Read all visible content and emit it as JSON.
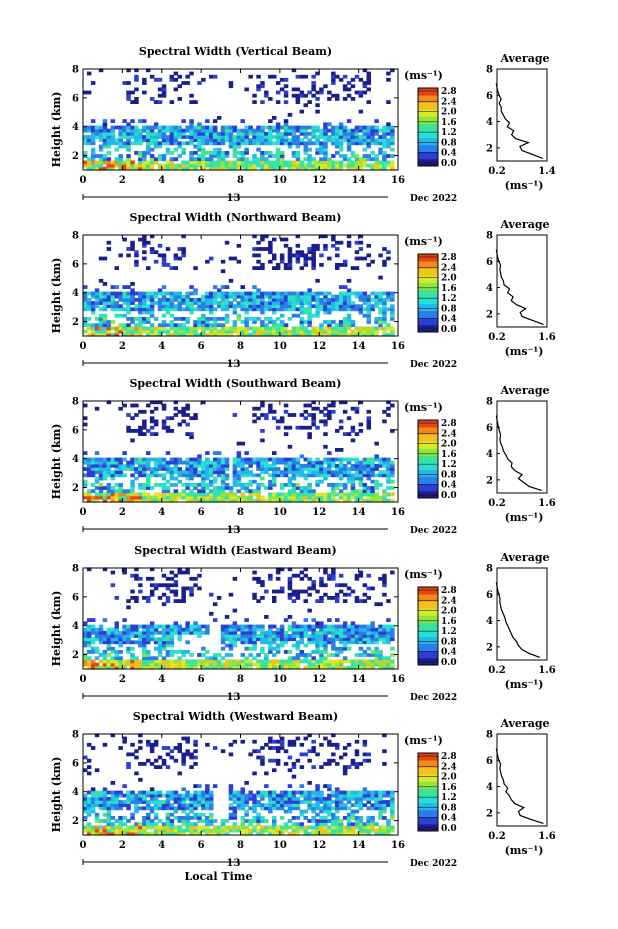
{
  "figure": {
    "xlabel_bottom": "Local Time",
    "date_suffix": "Dec 2022",
    "day_label": "13",
    "ylabel": "Height (km)",
    "colorbar_unit": "(ms⁻¹)",
    "profile_title": "Average",
    "profile_xlabel": "(ms⁻¹)",
    "colorbar_palette": [
      "#1b1f8a",
      "#2b3fd6",
      "#2a7ee8",
      "#27b6e8",
      "#27e0d0",
      "#3de39a",
      "#8ee640",
      "#d8e82a",
      "#f2c21c",
      "#f08a1a",
      "#e04616"
    ]
  },
  "chart_data": [
    {
      "type": "heatmap",
      "title": "Spectral Width (Vertical Beam)",
      "xlabel": "Local Time",
      "ylabel": "Height (km)",
      "xlim": [
        0,
        16
      ],
      "ylim": [
        1,
        8
      ],
      "xticks": [
        0,
        2,
        4,
        6,
        8,
        10,
        12,
        14,
        16
      ],
      "yticks": [
        2,
        4,
        6,
        8
      ],
      "colorbar": {
        "label": "(ms⁻¹)",
        "range": [
          0,
          2.8
        ],
        "ticks": [
          "2.8",
          "2.4",
          "2.0",
          "1.6",
          "1.2",
          "0.8",
          "0.4",
          "0.0"
        ]
      },
      "profile": {
        "title": "Average",
        "xlabel": "(ms⁻¹)",
        "xlim": [
          0.2,
          1.4
        ],
        "xticks": [
          "0.2",
          "1.4"
        ],
        "ylim": [
          1,
          8
        ],
        "yticks": [
          2,
          4,
          6,
          8
        ],
        "height": [
          1.2,
          1.5,
          1.8,
          2.1,
          2.4,
          2.7,
          3.0,
          3.3,
          3.6,
          3.9,
          4.2,
          4.5,
          4.8,
          5.1,
          5.4,
          5.7,
          6.0,
          6.3,
          6.6,
          6.9
        ],
        "value": [
          1.3,
          1.05,
          0.8,
          0.75,
          0.95,
          0.65,
          0.55,
          0.6,
          0.45,
          0.5,
          0.4,
          0.35,
          0.3,
          0.3,
          0.25,
          0.3,
          0.25,
          0.22,
          0.2,
          0.18
        ]
      }
    },
    {
      "type": "heatmap",
      "title": "Spectral Width (Northward Beam)",
      "xlabel": "Local Time",
      "ylabel": "Height (km)",
      "xlim": [
        0,
        16
      ],
      "ylim": [
        1,
        8
      ],
      "xticks": [
        0,
        2,
        4,
        6,
        8,
        10,
        12,
        14,
        16
      ],
      "yticks": [
        2,
        4,
        6,
        8
      ],
      "colorbar": {
        "label": "(ms⁻¹)",
        "range": [
          0,
          2.8
        ],
        "ticks": [
          "2.8",
          "2.4",
          "2.0",
          "1.6",
          "1.2",
          "0.8",
          "0.4",
          "0.0"
        ]
      },
      "profile": {
        "title": "Average",
        "xlabel": "(ms⁻¹)",
        "xlim": [
          0.2,
          1.6
        ],
        "xticks": [
          "0.2",
          "1.6"
        ],
        "ylim": [
          1,
          8
        ],
        "yticks": [
          2,
          4,
          6,
          8
        ],
        "height": [
          1.2,
          1.5,
          1.8,
          2.1,
          2.4,
          2.7,
          3.0,
          3.3,
          3.6,
          3.9,
          4.2,
          4.5,
          4.8,
          5.1,
          5.4,
          5.7,
          6.0,
          6.3,
          6.6,
          6.9
        ],
        "value": [
          1.5,
          1.2,
          0.9,
          0.85,
          1.0,
          0.75,
          0.6,
          0.65,
          0.5,
          0.55,
          0.4,
          0.38,
          0.32,
          0.3,
          0.28,
          0.3,
          0.25,
          0.22,
          0.2,
          0.18
        ]
      }
    },
    {
      "type": "heatmap",
      "title": "Spectral Width (Southward Beam)",
      "xlabel": "Local Time",
      "ylabel": "Height (km)",
      "xlim": [
        0,
        16
      ],
      "ylim": [
        1,
        8
      ],
      "xticks": [
        0,
        2,
        4,
        6,
        8,
        10,
        12,
        14,
        16
      ],
      "yticks": [
        2,
        4,
        6,
        8
      ],
      "colorbar": {
        "label": "(ms⁻¹)",
        "range": [
          0,
          2.8
        ],
        "ticks": [
          "2.8",
          "2.4",
          "2.0",
          "1.6",
          "1.2",
          "0.8",
          "0.4",
          "0.0"
        ]
      },
      "profile": {
        "title": "Average",
        "xlabel": "(ms⁻¹)",
        "xlim": [
          0.2,
          1.6
        ],
        "xticks": [
          "0.2",
          "1.6"
        ],
        "ylim": [
          1,
          8
        ],
        "yticks": [
          2,
          4,
          6,
          8
        ],
        "height": [
          1.2,
          1.5,
          1.8,
          2.1,
          2.4,
          2.7,
          3.0,
          3.3,
          3.6,
          3.9,
          4.2,
          4.5,
          4.8,
          5.1,
          5.4,
          5.7,
          6.0,
          6.3,
          6.6,
          6.9
        ],
        "value": [
          1.45,
          1.1,
          0.95,
          0.8,
          0.9,
          0.7,
          0.6,
          0.62,
          0.5,
          0.45,
          0.38,
          0.35,
          0.3,
          0.28,
          0.3,
          0.27,
          0.24,
          0.22,
          0.2,
          0.18
        ]
      }
    },
    {
      "type": "heatmap",
      "title": "Spectral Width (Eastward Beam)",
      "xlabel": "Local Time",
      "ylabel": "Height (km)",
      "xlim": [
        0,
        16
      ],
      "ylim": [
        1,
        8
      ],
      "xticks": [
        0,
        2,
        4,
        6,
        8,
        10,
        12,
        14,
        16
      ],
      "yticks": [
        2,
        4,
        6,
        8
      ],
      "colorbar": {
        "label": "(ms⁻¹)",
        "range": [
          0,
          2.8
        ],
        "ticks": [
          "2.8",
          "2.4",
          "2.0",
          "1.6",
          "1.2",
          "0.8",
          "0.4",
          "0.0"
        ]
      },
      "profile": {
        "title": "Average",
        "xlabel": "(ms⁻¹)",
        "xlim": [
          0.2,
          1.6
        ],
        "xticks": [
          "0.2",
          "1.6"
        ],
        "ylim": [
          1,
          8
        ],
        "yticks": [
          2,
          4,
          6,
          8
        ],
        "height": [
          1.2,
          1.5,
          1.8,
          2.1,
          2.4,
          2.7,
          3.0,
          3.3,
          3.6,
          3.9,
          4.2,
          4.5,
          4.8,
          5.1,
          5.4,
          5.7,
          6.0,
          6.3,
          6.6,
          6.9
        ],
        "value": [
          1.4,
          1.1,
          0.9,
          0.8,
          0.75,
          0.65,
          0.6,
          0.55,
          0.5,
          0.45,
          0.42,
          0.38,
          0.33,
          0.3,
          0.28,
          0.28,
          0.25,
          0.22,
          0.2,
          0.18
        ]
      }
    },
    {
      "type": "heatmap",
      "title": "Spectral Width (Westward Beam)",
      "xlabel": "Local Time",
      "ylabel": "Height (km)",
      "xlim": [
        0,
        16
      ],
      "ylim": [
        1,
        8
      ],
      "xticks": [
        0,
        2,
        4,
        6,
        8,
        10,
        12,
        14,
        16
      ],
      "yticks": [
        2,
        4,
        6,
        8
      ],
      "colorbar": {
        "label": "(ms⁻¹)",
        "range": [
          0,
          2.8
        ],
        "ticks": [
          "2.8",
          "2.4",
          "2.0",
          "1.6",
          "1.2",
          "0.8",
          "0.4",
          "0.0"
        ]
      },
      "profile": {
        "title": "Average",
        "xlabel": "(ms⁻¹)",
        "xlim": [
          0.2,
          1.6
        ],
        "xticks": [
          "0.2",
          "1.6"
        ],
        "ylim": [
          1,
          8
        ],
        "yticks": [
          2,
          4,
          6,
          8
        ],
        "height": [
          1.2,
          1.5,
          1.8,
          2.1,
          2.4,
          2.7,
          3.0,
          3.3,
          3.6,
          3.9,
          4.2,
          4.5,
          4.8,
          5.1,
          5.4,
          5.7,
          6.0,
          6.3,
          6.6,
          6.9
        ],
        "value": [
          1.5,
          1.15,
          0.85,
          0.8,
          0.95,
          0.7,
          0.6,
          0.55,
          0.45,
          0.5,
          0.4,
          0.38,
          0.33,
          0.3,
          0.28,
          0.3,
          0.25,
          0.22,
          0.2,
          0.18
        ]
      }
    }
  ]
}
